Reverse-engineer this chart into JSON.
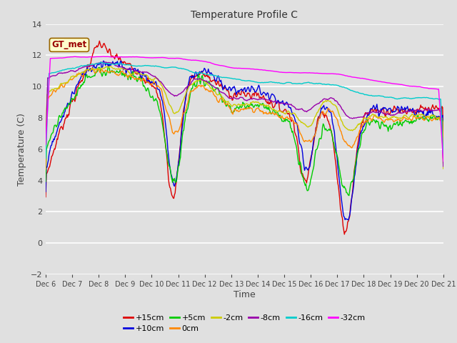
{
  "title": "Temperature Profile C",
  "xlabel": "Time",
  "ylabel": "Temperature (C)",
  "ylim": [
    -2,
    14
  ],
  "yticks": [
    -2,
    0,
    2,
    4,
    6,
    8,
    10,
    12,
    14
  ],
  "background_color": "#e0e0e0",
  "plot_bg_color": "#e0e0e0",
  "grid_color": "white",
  "legend_label": "GT_met",
  "series": [
    {
      "label": "+15cm",
      "color": "#dd0000"
    },
    {
      "label": "+10cm",
      "color": "#0000dd"
    },
    {
      "label": "+5cm",
      "color": "#00cc00"
    },
    {
      "label": "0cm",
      "color": "#ff8800"
    },
    {
      "label": "-2cm",
      "color": "#cccc00"
    },
    {
      "label": "-8cm",
      "color": "#9900aa"
    },
    {
      "label": "-16cm",
      "color": "#00cccc"
    },
    {
      "label": "-32cm",
      "color": "#ff00ff"
    }
  ],
  "x_tick_labels": [
    "Dec 6",
    "Dec 7",
    "Dec 8",
    "Dec 9",
    "Dec 10",
    "Dec 11",
    "Dec 12",
    "Dec 13",
    "Dec 14",
    "Dec 15",
    "Dec 16",
    "Dec 17",
    "Dec 18",
    "Dec 19",
    "Dec 20",
    "Dec 21"
  ],
  "n_points": 600
}
